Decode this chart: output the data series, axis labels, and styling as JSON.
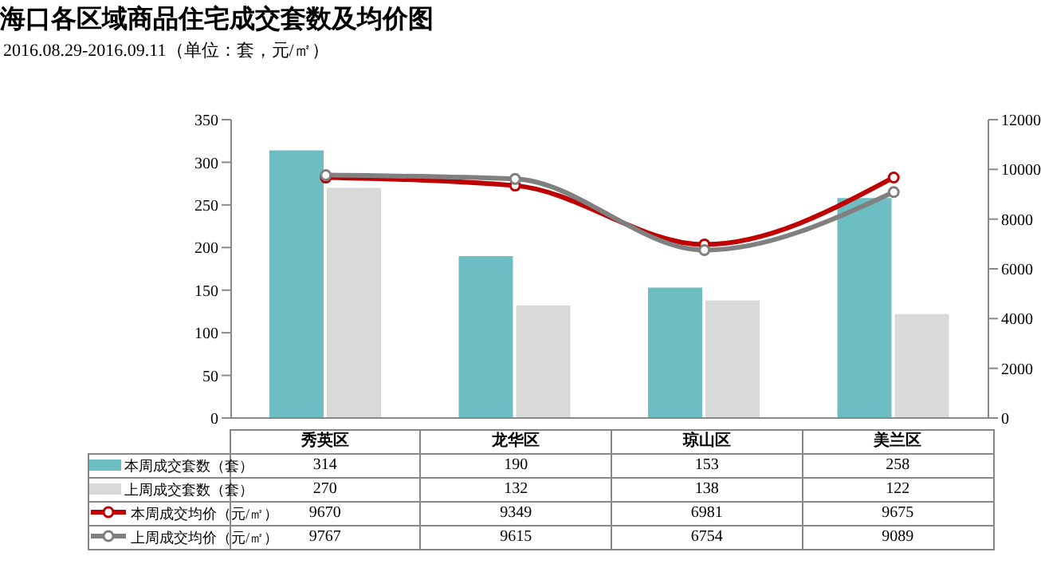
{
  "chart_data": {
    "type": "bar",
    "title": "海口各区域商品住宅成交套数及均价图",
    "subtitle": "2016.08.29-2016.09.11（单位：套，元/㎡）",
    "categories": [
      "秀英区",
      "龙华区",
      "琼山区",
      "美兰区"
    ],
    "series": [
      {
        "name": "本周成交套数（套）",
        "color": "#6dbec3",
        "values": [
          314,
          190,
          153,
          258
        ]
      },
      {
        "name": "上周成交套数（套）",
        "color": "#d9d9d9",
        "values": [
          270,
          132,
          138,
          122
        ]
      },
      {
        "name": "本周成交均价（元/㎡）",
        "type": "line",
        "axis": "y2",
        "color": "#c00000",
        "values": [
          9670,
          9349,
          6981,
          9675
        ]
      },
      {
        "name": "上周成交均价（元/㎡）",
        "type": "line",
        "axis": "y2",
        "color": "#808080",
        "values": [
          9767,
          9615,
          6754,
          9089
        ]
      }
    ],
    "ylim": [
      0,
      350
    ],
    "yticks": [
      0,
      50,
      100,
      150,
      200,
      250,
      300,
      350
    ],
    "y2lim": [
      0,
      12000
    ],
    "y2ticks": [
      0,
      2000,
      4000,
      6000,
      8000,
      10000,
      12000
    ],
    "data_labels": true,
    "legend": "bottom",
    "marker": "circle"
  }
}
